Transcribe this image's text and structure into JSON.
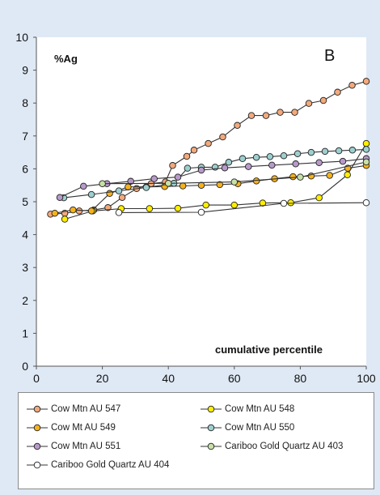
{
  "chart_data": {
    "type": "line",
    "panel_label": "B",
    "ylabel": "%Ag",
    "xlabel": "cumulative percentile",
    "xlim": [
      0,
      100
    ],
    "ylim": [
      0,
      10
    ],
    "x_ticks": [
      "0",
      "20",
      "40",
      "60",
      "80",
      "100"
    ],
    "y_ticks": [
      "0",
      "1",
      "2",
      "3",
      "4",
      "5",
      "6",
      "7",
      "8",
      "9",
      "10"
    ],
    "grid": false,
    "legend_position": "bottom",
    "series": [
      {
        "name": "Cow Mtn AU 547",
        "color": "#f2a97c",
        "points": [
          [
            4.3,
            4.62
          ],
          [
            8.6,
            4.65
          ],
          [
            13,
            4.72
          ],
          [
            17.4,
            4.75
          ],
          [
            21.7,
            4.82
          ],
          [
            26,
            5.13
          ],
          [
            30.4,
            5.4
          ],
          [
            34.8,
            5.55
          ],
          [
            39.1,
            5.6
          ],
          [
            41.3,
            6.1
          ],
          [
            45.6,
            6.38
          ],
          [
            47.8,
            6.57
          ],
          [
            52.1,
            6.77
          ],
          [
            56.5,
            6.97
          ],
          [
            60.9,
            7.32
          ],
          [
            65.2,
            7.62
          ],
          [
            69.6,
            7.62
          ],
          [
            73.9,
            7.72
          ],
          [
            78.3,
            7.72
          ],
          [
            82.6,
            7.99
          ],
          [
            87,
            8.08
          ],
          [
            91.3,
            8.33
          ],
          [
            95.7,
            8.54
          ],
          [
            100,
            8.66
          ]
        ]
      },
      {
        "name": "Cow Mtn AU 548",
        "color": "#ffee00",
        "points": [
          [
            8.6,
            4.47
          ],
          [
            17.1,
            4.72
          ],
          [
            25.7,
            4.79
          ],
          [
            34.3,
            4.79
          ],
          [
            42.9,
            4.8
          ],
          [
            51.4,
            4.9
          ],
          [
            60,
            4.9
          ],
          [
            68.6,
            4.96
          ],
          [
            77.1,
            4.97
          ],
          [
            85.7,
            5.12
          ],
          [
            94.3,
            5.82
          ],
          [
            100,
            6.77
          ]
        ]
      },
      {
        "name": "Cow Mt AU 549",
        "color": "#f5b21c",
        "points": [
          [
            5.6,
            4.65
          ],
          [
            11.1,
            4.75
          ],
          [
            16.7,
            4.72
          ],
          [
            22.2,
            5.25
          ],
          [
            27.8,
            5.45
          ],
          [
            33.3,
            5.45
          ],
          [
            38.9,
            5.46
          ],
          [
            44.4,
            5.48
          ],
          [
            50,
            5.5
          ],
          [
            55.6,
            5.52
          ],
          [
            61.1,
            5.55
          ],
          [
            66.7,
            5.63
          ],
          [
            72.2,
            5.7
          ],
          [
            77.8,
            5.76
          ],
          [
            83.3,
            5.78
          ],
          [
            88.9,
            5.8
          ],
          [
            94.4,
            6.02
          ],
          [
            100,
            6.1
          ]
        ]
      },
      {
        "name": "Cow Mtn AU 550",
        "color": "#9ecfcf",
        "points": [
          [
            8.3,
            5.12
          ],
          [
            16.7,
            5.22
          ],
          [
            25,
            5.33
          ],
          [
            33.3,
            5.43
          ],
          [
            41.7,
            5.56
          ],
          [
            45.8,
            6.02
          ],
          [
            50,
            6.05
          ],
          [
            54.2,
            6.05
          ],
          [
            58.3,
            6.2
          ],
          [
            62.5,
            6.31
          ],
          [
            66.7,
            6.35
          ],
          [
            70.8,
            6.37
          ],
          [
            75,
            6.4
          ],
          [
            79.2,
            6.46
          ],
          [
            83.3,
            6.5
          ],
          [
            87.5,
            6.53
          ],
          [
            91.7,
            6.55
          ],
          [
            95.8,
            6.57
          ],
          [
            100,
            6.59
          ]
        ]
      },
      {
        "name": "Cow Mtn AU 551",
        "color": "#b79ac9",
        "points": [
          [
            7.1,
            5.13
          ],
          [
            14.3,
            5.47
          ],
          [
            21.4,
            5.55
          ],
          [
            28.6,
            5.62
          ],
          [
            35.7,
            5.7
          ],
          [
            42.9,
            5.75
          ],
          [
            50,
            5.96
          ],
          [
            57.1,
            6.03
          ],
          [
            64.3,
            6.07
          ],
          [
            71.4,
            6.11
          ],
          [
            78.6,
            6.15
          ],
          [
            85.7,
            6.19
          ],
          [
            92.9,
            6.23
          ],
          [
            100,
            6.31
          ]
        ]
      },
      {
        "name": "Cariboo Gold Quartz AU 403",
        "color": "#c6e0a6",
        "points": [
          [
            20,
            5.55
          ],
          [
            40,
            5.56
          ],
          [
            60,
            5.6
          ],
          [
            80,
            5.75
          ],
          [
            100,
            6.21
          ]
        ]
      },
      {
        "name": "Cariboo Gold Quartz AU 404",
        "color": "#ffffff",
        "points": [
          [
            25,
            4.67
          ],
          [
            50,
            4.68
          ],
          [
            75,
            4.95
          ],
          [
            100,
            4.97
          ]
        ]
      }
    ]
  }
}
